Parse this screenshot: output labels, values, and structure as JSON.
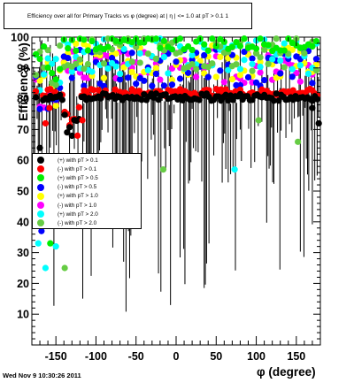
{
  "title": "Efficiency over all for Primary Tracks vs φ (degree) at |  η | <= 1.0 at pT > 0.1 1",
  "timestamp": "Wed Nov  9 10:30:26 2011",
  "chart_data": {
    "type": "scatter",
    "xlabel": "φ (degree)",
    "ylabel": "Efficiency (%)",
    "xlim": [
      -180,
      180
    ],
    "ylim": [
      0,
      100
    ],
    "xticks": [
      -150,
      -100,
      -50,
      0,
      50,
      100,
      150
    ],
    "yticks": [
      10,
      20,
      30,
      40,
      50,
      60,
      70,
      80,
      90,
      100
    ],
    "legend_placement": "middle-left",
    "series": [
      {
        "name": "(+) with pT > 0.1",
        "color": "#000000",
        "base": 80.5,
        "spread": 1.2
      },
      {
        "name": "(-) with pT > 0.1",
        "color": "#ff0000",
        "base": 82.0,
        "spread": 1.2
      },
      {
        "name": "(+) with pT > 0.5",
        "color": "#00ee00",
        "base": 98.0,
        "spread": 2.5
      },
      {
        "name": "(-) with pT > 0.5",
        "color": "#0000ff",
        "base": 90.0,
        "spread": 6.0
      },
      {
        "name": "(+) with pT > 1.0",
        "color": "#ffff00",
        "base": 92.0,
        "spread": 6.0
      },
      {
        "name": "(-) with pT > 1.0",
        "color": "#ff00ff",
        "base": 91.0,
        "spread": 6.0
      },
      {
        "name": "(+) with pT > 2.0",
        "color": "#00ffff",
        "base": 94.0,
        "spread": 6.0
      },
      {
        "name": "(-) with pT > 2.0",
        "color": "#66cc44",
        "base": 95.0,
        "spread": 6.0
      }
    ],
    "outliers": [
      {
        "series": 0,
        "x": -170,
        "y": 64
      },
      {
        "series": 0,
        "x": -135,
        "y": 46
      },
      {
        "series": 0,
        "x": -140,
        "y": 60
      },
      {
        "series": 0,
        "x": 178,
        "y": 72
      },
      {
        "series": 0,
        "x": 170,
        "y": 77
      },
      {
        "series": 1,
        "x": -158,
        "y": 77
      },
      {
        "series": 1,
        "x": -163,
        "y": 72
      },
      {
        "series": 1,
        "x": -123,
        "y": 68
      },
      {
        "series": 1,
        "x": -117,
        "y": 73
      },
      {
        "series": 6,
        "x": -172,
        "y": 33
      },
      {
        "series": 6,
        "x": -163,
        "y": 25
      },
      {
        "series": 6,
        "x": -150,
        "y": 32
      },
      {
        "series": 6,
        "x": 73,
        "y": 57
      },
      {
        "series": 7,
        "x": -139,
        "y": 25
      },
      {
        "series": 7,
        "x": -16,
        "y": 57
      },
      {
        "series": 7,
        "x": 152,
        "y": 66
      },
      {
        "series": 7,
        "x": 103,
        "y": 73
      },
      {
        "series": 3,
        "x": -168,
        "y": 37
      },
      {
        "series": 2,
        "x": -157,
        "y": 33
      }
    ]
  }
}
